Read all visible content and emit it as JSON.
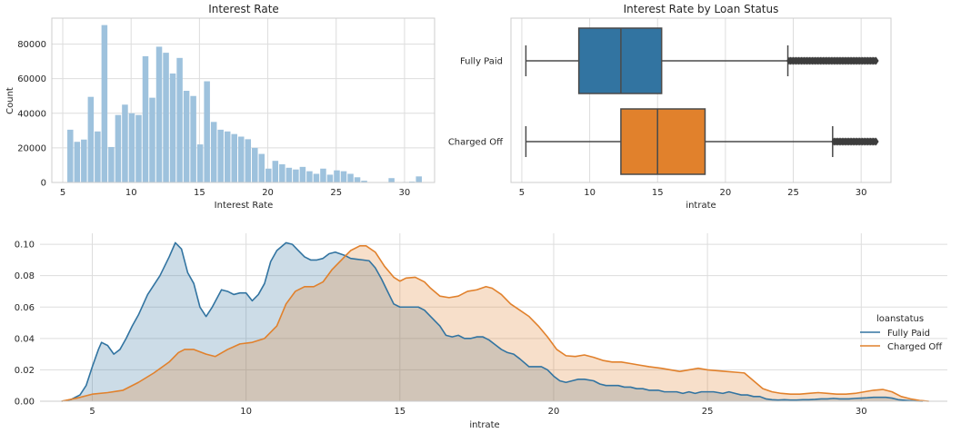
{
  "chart_data": [
    {
      "id": "hist",
      "type": "bar",
      "title": "Interest Rate",
      "xlabel": "Interest Rate",
      "ylabel": "Count",
      "xlim": [
        4.2,
        32.2
      ],
      "ylim": [
        0,
        95000
      ],
      "xticks": [
        5,
        10,
        15,
        20,
        25,
        30
      ],
      "yticks": [
        0,
        20000,
        40000,
        60000,
        80000
      ],
      "grid": true,
      "bin_edges": [
        5.3,
        5.8,
        6.3,
        6.8,
        7.3,
        7.8,
        8.3,
        8.8,
        9.3,
        9.8,
        10.3,
        10.8,
        11.3,
        11.8,
        12.3,
        12.8,
        13.3,
        13.8,
        14.3,
        14.8,
        15.3,
        15.8,
        16.3,
        16.8,
        17.3,
        17.8,
        18.3,
        18.8,
        19.3,
        19.8,
        20.3,
        20.8,
        21.3,
        21.8,
        22.3,
        22.8,
        23.3,
        23.8,
        24.3,
        24.8,
        25.3,
        25.8,
        26.3,
        26.8,
        27.3,
        27.8,
        28.3,
        28.8,
        29.3,
        29.8,
        30.3,
        30.8,
        31.3
      ],
      "values": [
        30500,
        23500,
        24800,
        49500,
        29500,
        91000,
        20500,
        39000,
        45000,
        40000,
        39000,
        73000,
        49000,
        78500,
        75000,
        63000,
        72000,
        53000,
        50000,
        22000,
        58500,
        35000,
        30500,
        29500,
        28000,
        26500,
        25000,
        20000,
        16500,
        8000,
        12500,
        10500,
        8500,
        7500,
        9000,
        6500,
        5000,
        8000,
        4500,
        7000,
        6500,
        5000,
        3000,
        1000,
        200,
        200,
        200,
        2500,
        100,
        300,
        500,
        3500
      ],
      "color": "#9ec2dd"
    },
    {
      "id": "box",
      "type": "box",
      "title": "Interest Rate by Loan Status",
      "xlabel": "intrate",
      "ylabel": "",
      "xlim": [
        4.2,
        32.2
      ],
      "xticks": [
        5,
        10,
        15,
        20,
        25,
        30
      ],
      "grid": true,
      "categories": [
        "Fully Paid",
        "Charged Off"
      ],
      "series": [
        {
          "name": "Fully Paid",
          "min": 5.3,
          "q1": 9.2,
          "median": 12.3,
          "q3": 15.3,
          "max": 24.6,
          "outlier_range": [
            24.7,
            31.1
          ],
          "color": "#3274a1"
        },
        {
          "name": "Charged Off",
          "min": 5.3,
          "q1": 12.3,
          "median": 15.0,
          "q3": 18.5,
          "max": 27.9,
          "outlier_range": [
            28.0,
            31.1
          ],
          "color": "#e1812c"
        }
      ]
    },
    {
      "id": "kde",
      "type": "area",
      "title": "",
      "xlabel": "intrate",
      "ylabel": "",
      "xlim": [
        3.3,
        32.8
      ],
      "ylim": [
        0,
        0.107
      ],
      "xticks": [
        5,
        10,
        15,
        20,
        25,
        30
      ],
      "yticks": [
        0.0,
        0.02,
        0.04,
        0.06,
        0.08,
        0.1
      ],
      "ytick_labels": [
        "0.00",
        "0.02",
        "0.04",
        "0.06",
        "0.08",
        "0.10"
      ],
      "grid": true,
      "legend": {
        "title": "loanstatus",
        "position": "center-right"
      },
      "series": [
        {
          "name": "Fully Paid",
          "color": "#3274a1",
          "x": [
            4.0,
            4.3,
            4.6,
            4.8,
            5.0,
            5.2,
            5.3,
            5.5,
            5.7,
            5.9,
            6.1,
            6.3,
            6.5,
            6.8,
            7.0,
            7.2,
            7.5,
            7.7,
            7.9,
            8.1,
            8.3,
            8.5,
            8.7,
            8.9,
            9.2,
            9.4,
            9.6,
            9.8,
            10.0,
            10.2,
            10.4,
            10.6,
            10.8,
            11.0,
            11.3,
            11.5,
            11.7,
            11.9,
            12.1,
            12.3,
            12.5,
            12.7,
            12.9,
            13.2,
            13.4,
            13.6,
            13.8,
            14.0,
            14.2,
            14.4,
            14.6,
            14.8,
            15.0,
            15.2,
            15.4,
            15.6,
            15.8,
            16.0,
            16.3,
            16.5,
            16.7,
            16.9,
            17.1,
            17.3,
            17.5,
            17.7,
            17.9,
            18.1,
            18.3,
            18.5,
            18.7,
            18.9,
            19.2,
            19.4,
            19.6,
            19.8,
            20.0,
            20.2,
            20.4,
            20.6,
            20.8,
            21.0,
            21.3,
            21.5,
            21.7,
            21.9,
            22.1,
            22.3,
            22.5,
            22.7,
            22.9,
            23.1,
            23.4,
            23.6,
            23.8,
            24.0,
            24.2,
            24.4,
            24.6,
            24.8,
            25.0,
            25.2,
            25.5,
            25.7,
            25.9,
            26.1,
            26.3,
            26.5,
            26.7,
            26.9,
            27.1,
            27.3,
            27.5,
            27.7,
            27.9,
            28.1,
            28.3,
            28.5,
            28.7,
            28.9,
            29.1,
            29.3,
            29.6,
            29.8,
            30.0,
            30.2,
            30.4,
            30.6,
            30.8,
            31.0,
            31.2,
            31.5,
            31.7,
            32.0
          ],
          "y": [
            0.0,
            0.001,
            0.004,
            0.01,
            0.022,
            0.033,
            0.0375,
            0.0355,
            0.03,
            0.033,
            0.04,
            0.048,
            0.055,
            0.068,
            0.074,
            0.08,
            0.092,
            0.101,
            0.097,
            0.082,
            0.075,
            0.06,
            0.054,
            0.06,
            0.071,
            0.07,
            0.068,
            0.069,
            0.069,
            0.064,
            0.068,
            0.075,
            0.089,
            0.096,
            0.101,
            0.1,
            0.096,
            0.092,
            0.09,
            0.09,
            0.091,
            0.094,
            0.095,
            0.093,
            0.091,
            0.0905,
            0.09,
            0.0895,
            0.085,
            0.078,
            0.07,
            0.062,
            0.06,
            0.06,
            0.06,
            0.06,
            0.058,
            0.054,
            0.048,
            0.042,
            0.041,
            0.042,
            0.04,
            0.04,
            0.041,
            0.041,
            0.039,
            0.036,
            0.033,
            0.031,
            0.03,
            0.027,
            0.022,
            0.022,
            0.022,
            0.02,
            0.016,
            0.013,
            0.012,
            0.013,
            0.014,
            0.014,
            0.013,
            0.011,
            0.01,
            0.01,
            0.01,
            0.009,
            0.009,
            0.008,
            0.008,
            0.007,
            0.007,
            0.006,
            0.006,
            0.006,
            0.005,
            0.006,
            0.005,
            0.006,
            0.006,
            0.006,
            0.005,
            0.006,
            0.005,
            0.004,
            0.004,
            0.003,
            0.003,
            0.0015,
            0.001,
            0.0008,
            0.001,
            0.0008,
            0.0008,
            0.001,
            0.001,
            0.0012,
            0.0015,
            0.0015,
            0.0018,
            0.0015,
            0.0015,
            0.0018,
            0.002,
            0.0022,
            0.0025,
            0.0025,
            0.0025,
            0.002,
            0.001,
            0.0005,
            0.0002,
            0.0
          ]
        },
        {
          "name": "Charged Off",
          "color": "#e1812c",
          "x": [
            4.0,
            4.5,
            5.0,
            5.5,
            6.0,
            6.5,
            7.0,
            7.5,
            7.8,
            8.0,
            8.3,
            8.7,
            9.0,
            9.4,
            9.8,
            10.2,
            10.6,
            11.0,
            11.3,
            11.6,
            11.9,
            12.2,
            12.5,
            12.8,
            13.1,
            13.4,
            13.7,
            13.9,
            14.2,
            14.5,
            14.8,
            15.0,
            15.2,
            15.5,
            15.8,
            16.0,
            16.3,
            16.6,
            16.9,
            17.2,
            17.5,
            17.8,
            18.0,
            18.3,
            18.6,
            18.9,
            19.2,
            19.5,
            19.8,
            20.1,
            20.4,
            20.7,
            21.0,
            21.3,
            21.6,
            21.9,
            22.2,
            22.5,
            22.8,
            23.1,
            23.5,
            23.8,
            24.1,
            24.4,
            24.7,
            25.0,
            25.3,
            25.6,
            25.9,
            26.2,
            26.5,
            26.8,
            27.1,
            27.4,
            27.7,
            28.0,
            28.3,
            28.6,
            28.9,
            29.2,
            29.5,
            29.8,
            30.1,
            30.4,
            30.7,
            31.0,
            31.3,
            31.6,
            31.9,
            32.2
          ],
          "y": [
            0.0,
            0.002,
            0.0045,
            0.0055,
            0.007,
            0.012,
            0.018,
            0.025,
            0.031,
            0.033,
            0.033,
            0.03,
            0.0285,
            0.033,
            0.0365,
            0.0375,
            0.04,
            0.048,
            0.062,
            0.07,
            0.073,
            0.073,
            0.076,
            0.084,
            0.09,
            0.096,
            0.099,
            0.099,
            0.095,
            0.086,
            0.079,
            0.0765,
            0.0785,
            0.079,
            0.076,
            0.072,
            0.067,
            0.066,
            0.067,
            0.07,
            0.071,
            0.073,
            0.072,
            0.068,
            0.062,
            0.058,
            0.054,
            0.048,
            0.041,
            0.033,
            0.029,
            0.0285,
            0.0295,
            0.028,
            0.026,
            0.025,
            0.025,
            0.024,
            0.023,
            0.022,
            0.021,
            0.02,
            0.019,
            0.02,
            0.021,
            0.02,
            0.0195,
            0.019,
            0.0185,
            0.018,
            0.013,
            0.008,
            0.006,
            0.005,
            0.0045,
            0.0045,
            0.005,
            0.0055,
            0.005,
            0.0045,
            0.0045,
            0.005,
            0.006,
            0.007,
            0.0075,
            0.006,
            0.003,
            0.0015,
            0.0005,
            0.0
          ]
        }
      ]
    }
  ]
}
